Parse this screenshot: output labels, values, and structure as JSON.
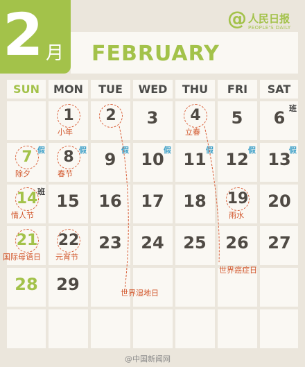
{
  "header": {
    "month_number": "2",
    "month_char": "月",
    "month_name": "FEBRUARY"
  },
  "logo": {
    "mark": "@",
    "name_cn": "人民日报",
    "name_en": "PEOPLE'S DAILY"
  },
  "weekdays": [
    "SUN",
    "MON",
    "TUE",
    "WED",
    "THU",
    "FRI",
    "SAT"
  ],
  "days": {
    "d1": "1",
    "d2": "2",
    "d3": "3",
    "d4": "4",
    "d5": "5",
    "d6": "6",
    "d7": "7",
    "d8": "8",
    "d9": "9",
    "d10": "10",
    "d11": "11",
    "d12": "12",
    "d13": "13",
    "d14": "14",
    "d15": "15",
    "d16": "16",
    "d17": "17",
    "d18": "18",
    "d19": "19",
    "d20": "20",
    "d21": "21",
    "d22": "22",
    "d23": "23",
    "d24": "24",
    "d25": "25",
    "d26": "26",
    "d27": "27",
    "d28": "28",
    "d29": "29"
  },
  "festivals": {
    "f1": "小年",
    "f4": "立春",
    "f7": "除夕",
    "f8": "春节",
    "f14": "情人节",
    "f19": "雨水",
    "f21": "国际母语日",
    "f22": "元宵节",
    "f2": "世界湿地日",
    "f4b": "世界癌症日"
  },
  "markers": {
    "work": "班",
    "off": "假"
  },
  "watermark": "@中国新闻网",
  "colors": {
    "accent_green": "#a3c24a",
    "festival_red": "#d2572c",
    "holiday_blue": "#3ea0c8",
    "background": "#ebe6dc",
    "cell": "#faf8f3"
  }
}
